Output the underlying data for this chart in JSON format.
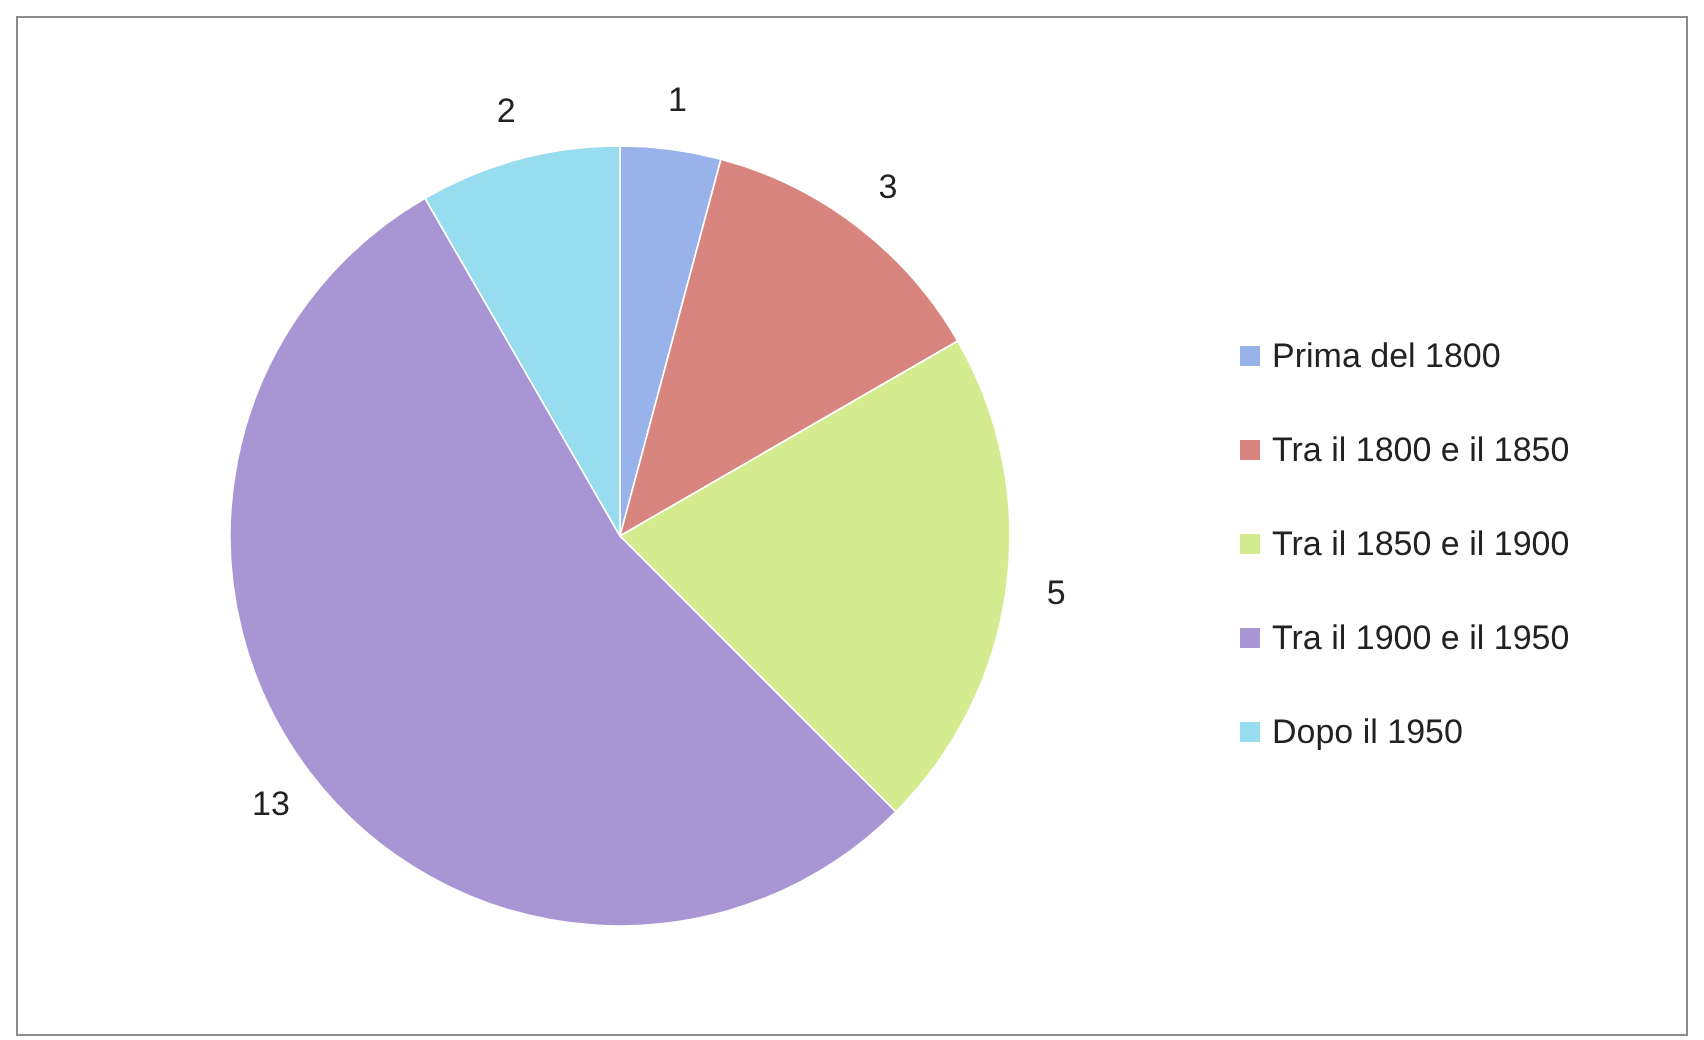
{
  "chart_data": {
    "type": "pie",
    "categories": [
      "Prima del 1800",
      "Tra il 1800 e il 1850",
      "Tra il 1850 e il 1900",
      "Tra il 1900 e il 1950",
      "Dopo il 1950"
    ],
    "values": [
      1,
      3,
      5,
      13,
      2
    ],
    "colors": [
      "#97b3ea",
      "#d9857f",
      "#d5eb8f",
      "#a896d4",
      "#97dcef"
    ],
    "data_labels": true,
    "legend": "right"
  }
}
